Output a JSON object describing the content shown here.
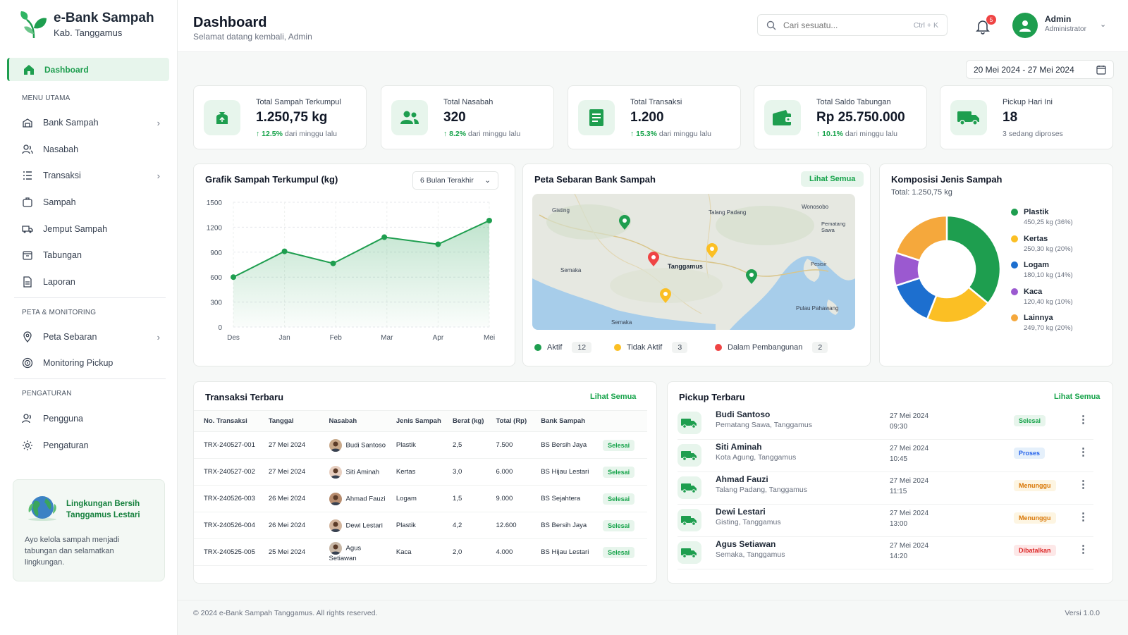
{
  "app": {
    "title": "e-Bank Sampah",
    "subtitle": "Kab. Tanggamus"
  },
  "sidebar": {
    "active": "Dashboard",
    "sections": [
      "MENU UTAMA",
      "PETA & MONITORING",
      "PENGATURAN"
    ],
    "items": [
      {
        "label": "Bank Sampah",
        "chevron": true
      },
      {
        "label": "Nasabah",
        "chevron": false
      },
      {
        "label": "Transaksi",
        "chevron": true
      },
      {
        "label": "Sampah",
        "chevron": false
      },
      {
        "label": "Jemput Sampah",
        "chevron": false
      },
      {
        "label": "Tabungan",
        "chevron": false
      },
      {
        "label": "Laporan",
        "chevron": false
      },
      {
        "label": "Peta Sebaran",
        "chevron": true
      },
      {
        "label": "Monitoring Pickup",
        "chevron": false
      },
      {
        "label": "Pengguna",
        "chevron": false
      },
      {
        "label": "Pengaturan",
        "chevron": false
      }
    ],
    "promo": {
      "title": "Lingkungan Bersih Tanggamus Lestari",
      "text": "Ayo kelola sampah menjadi tabungan dan selamatkan lingkungan."
    }
  },
  "header": {
    "title": "Dashboard",
    "subtitle": "Selamat datang kembali, Admin",
    "search_placeholder": "Cari sesuatu...",
    "search_shortcut": "Ctrl + K",
    "notif_count": "5",
    "user_name": "Admin",
    "user_role": "Administrator"
  },
  "date_range": "20 Mei 2024 - 27 Mei 2024",
  "stats": [
    {
      "label": "Total Sampah Terkumpul",
      "value": "1.250,75 kg",
      "trend": "↑ 12.5%",
      "trend_text": "dari minggu lalu"
    },
    {
      "label": "Total Nasabah",
      "value": "320",
      "trend": "↑ 8.2%",
      "trend_text": "dari minggu lalu"
    },
    {
      "label": "Total Transaksi",
      "value": "1.200",
      "trend": "↑ 15.3%",
      "trend_text": "dari minggu lalu"
    },
    {
      "label": "Total Saldo Tabungan",
      "value": "Rp 25.750.000",
      "trend": "↑ 10.1%",
      "trend_text": "dari minggu lalu"
    },
    {
      "label": "Pickup Hari Ini",
      "value": "18",
      "trend": "",
      "trend_text": "3 sedang diproses"
    }
  ],
  "line_chart": {
    "title": "Grafik Sampah Terkumpul (kg)",
    "filter": "6 Bulan Terakhir"
  },
  "chart_data": [
    {
      "type": "area",
      "title": "Grafik Sampah Terkumpul (kg)",
      "categories": [
        "Des",
        "Jan",
        "Feb",
        "Mar",
        "Apr",
        "Mei"
      ],
      "x": [
        0,
        1,
        1.95,
        2.95,
        4,
        5
      ],
      "values": [
        600,
        910,
        765,
        1080,
        995,
        1280
      ],
      "ylim": [
        0,
        1500
      ],
      "yticks": [
        0,
        300,
        600,
        900,
        1200,
        1500
      ],
      "grid": true,
      "color": "#1e9e4f"
    },
    {
      "type": "pie",
      "title": "Komposisi Jenis Sampah",
      "subtitle": "Total: 1.250,75 kg",
      "labels": [
        "Plastik",
        "Kertas",
        "Logam",
        "Kaca",
        "Lainnya"
      ],
      "values": [
        36,
        20,
        14,
        10,
        20
      ],
      "detail": [
        "450,25 kg (36%)",
        "250,30 kg (20%)",
        "180,10 kg (14%)",
        "120,40 kg (10%)",
        "249,70 kg (20%)"
      ],
      "colors": [
        "#1e9e4f",
        "#fbbf24",
        "#1d6fcf",
        "#9b59d0",
        "#f5a83c"
      ]
    }
  ],
  "map": {
    "title": "Peta Sebaran Bank Sampah",
    "link": "Lihat Semua",
    "places": [
      "Gisting",
      "Talang Padang",
      "Wonosobo",
      "Pematang Sawa",
      "Semaka",
      "Tanggamus",
      "Pesisir",
      "Pulau Pahawang",
      "Semaka"
    ],
    "legend": [
      {
        "label": "Aktif",
        "count": "12",
        "color": "#1e9e4f"
      },
      {
        "label": "Tidak Aktif",
        "count": "3",
        "color": "#fbbf24"
      },
      {
        "label": "Dalam Pembangunan",
        "count": "2",
        "color": "#ef4444"
      }
    ]
  },
  "transactions": {
    "title": "Transaksi Terbaru",
    "link": "Lihat Semua",
    "columns": [
      "No. Transaksi",
      "Tanggal",
      "Nasabah",
      "Jenis Sampah",
      "Berat (kg)",
      "Total (Rp)",
      "Bank Sampah",
      ""
    ],
    "rows": [
      [
        "TRX-240527-001",
        "27 Mei 2024",
        "Budi Santoso",
        "Plastik",
        "2,5",
        "7.500",
        "BS Bersih Jaya",
        "Selesai"
      ],
      [
        "TRX-240527-002",
        "27 Mei 2024",
        "Siti Aminah",
        "Kertas",
        "3,0",
        "6.000",
        "BS Hijau Lestari",
        "Selesai"
      ],
      [
        "TRX-240526-003",
        "26 Mei 2024",
        "Ahmad Fauzi",
        "Logam",
        "1,5",
        "9.000",
        "BS Sejahtera",
        "Selesai"
      ],
      [
        "TRX-240526-004",
        "26 Mei 2024",
        "Dewi Lestari",
        "Plastik",
        "4,2",
        "12.600",
        "BS Bersih Jaya",
        "Selesai"
      ],
      [
        "TRX-240525-005",
        "25 Mei 2024",
        "Agus Setiawan",
        "Kaca",
        "2,0",
        "4.000",
        "BS Hijau Lestari",
        "Selesai"
      ]
    ]
  },
  "pickups": {
    "title": "Pickup Terbaru",
    "link": "Lihat Semua",
    "rows": [
      {
        "name": "Budi Santoso",
        "addr": "Pematang Sawa, Tanggamus",
        "date": "27 Mei 2024",
        "time": "09:30",
        "status": "Selesai"
      },
      {
        "name": "Siti Aminah",
        "addr": "Kota Agung, Tanggamus",
        "date": "27 Mei 2024",
        "time": "10:45",
        "status": "Proses"
      },
      {
        "name": "Ahmad Fauzi",
        "addr": "Talang Padang, Tanggamus",
        "date": "27 Mei 2024",
        "time": "11:15",
        "status": "Menunggu"
      },
      {
        "name": "Dewi Lestari",
        "addr": "Gisting, Tanggamus",
        "date": "27 Mei 2024",
        "time": "13:00",
        "status": "Menunggu"
      },
      {
        "name": "Agus Setiawan",
        "addr": "Semaka, Tanggamus",
        "date": "27 Mei 2024",
        "time": "14:20",
        "status": "Dibatalkan"
      }
    ]
  },
  "footer": {
    "copyright": "© 2024 e-Bank Sampah Tanggamus. All rights reserved.",
    "version": "Versi 1.0.0"
  }
}
